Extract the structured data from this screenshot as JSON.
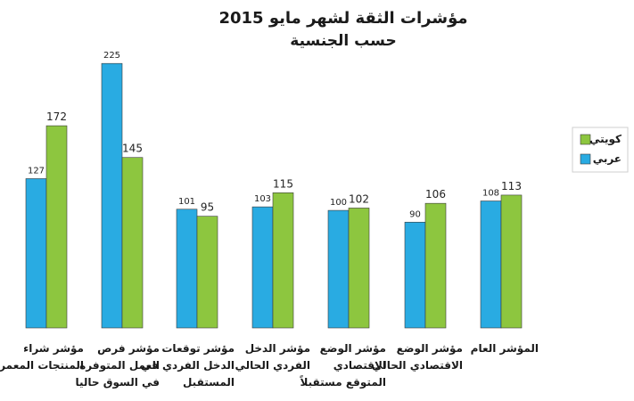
{
  "chart_data": {
    "type": "bar",
    "title": "مؤشرات الثقة لشهر مايو    2015",
    "subtitle": "حسب الجنسية",
    "categories": [
      [
        "مؤشر شراء",
        "المنتجات المعمرة"
      ],
      [
        "مؤشر فرص",
        "العمل المتوفرة",
        "في السوق حاليا"
      ],
      [
        "مؤشر توقعات",
        "الدخل الفردي في",
        "المستقبل"
      ],
      [
        "مؤشر الدخل",
        "الفردي الحالي"
      ],
      [
        "مؤشر الوضع",
        "الاقتصادي",
        "المتوقع مستقبلاً"
      ],
      [
        "مؤشر الوضع",
        "الاقتصادي الحالي"
      ],
      [
        "المؤشر العام"
      ]
    ],
    "series": [
      {
        "name": "عربي",
        "color": "#29abe2",
        "values": [
          127,
          225,
          101,
          103,
          100,
          90,
          108
        ]
      },
      {
        "name": "كويتي",
        "color": "#8dc63f",
        "values": [
          172,
          145,
          95,
          115,
          102,
          106,
          113
        ]
      }
    ],
    "ylim": [
      0,
      235
    ],
    "grid": false,
    "legend_position": "right"
  }
}
